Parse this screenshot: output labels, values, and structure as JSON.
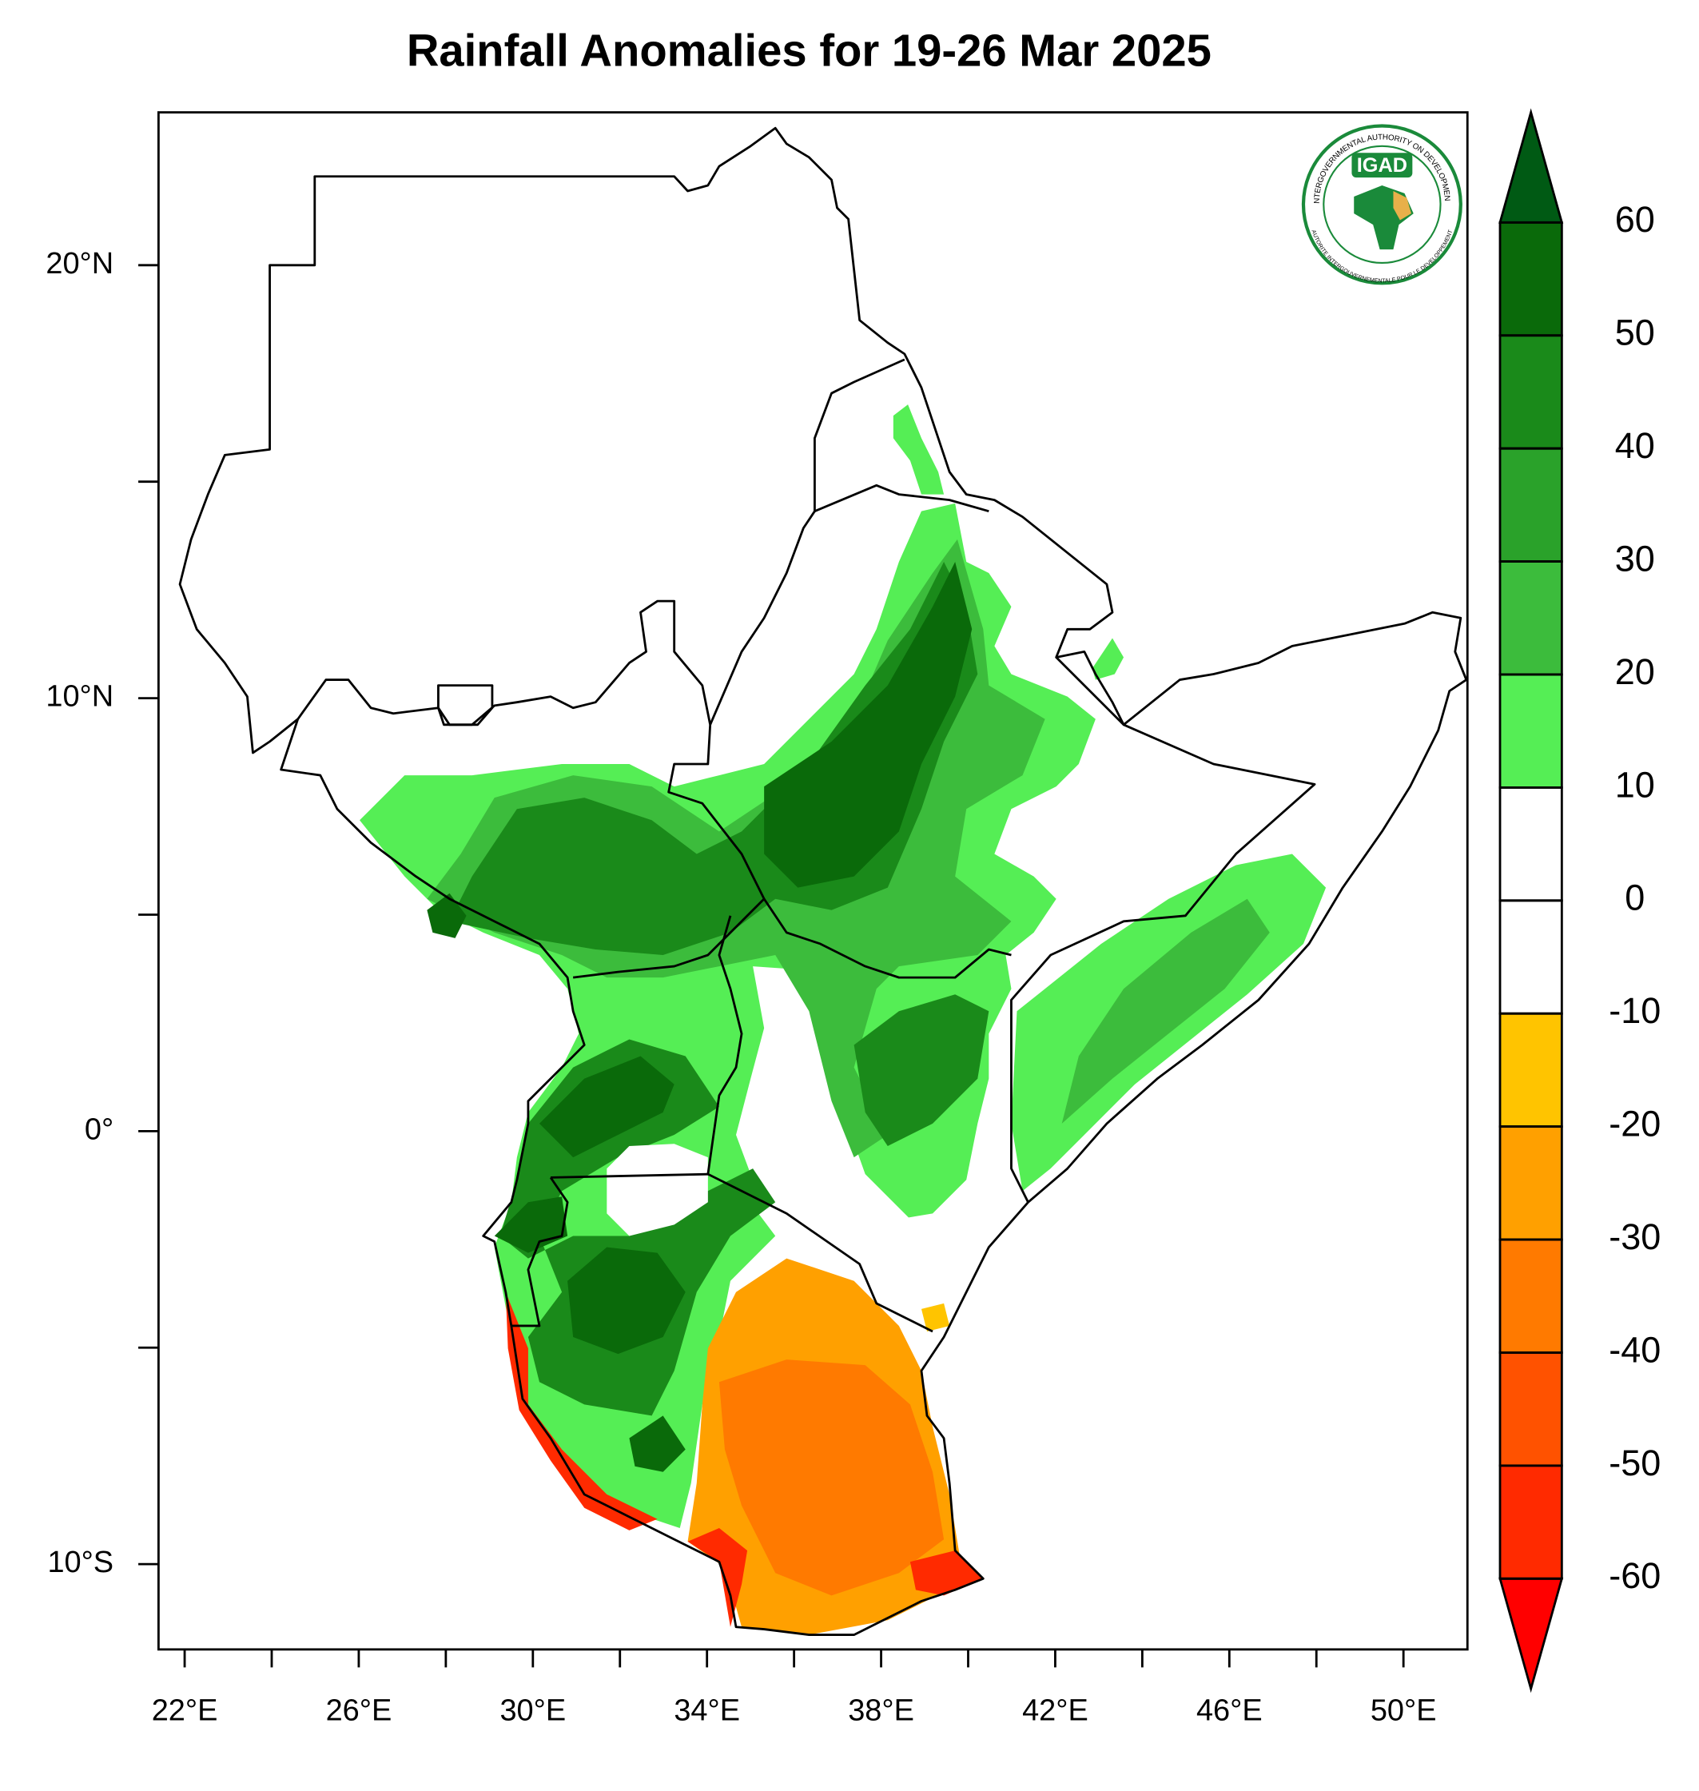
{
  "title": "Rainfall Anomalies for 19-26 Mar 2025",
  "logo": {
    "name": "IGAD",
    "ring_top": "INTERGOVERNMENTAL AUTHORITY ON DEVELOPMENT",
    "ring_bottom": "AUTORITE INTERGOUVERNEMENTALE POUR LE DEVELOPPEMENT"
  },
  "map": {
    "xlim": [
      21.4,
      51.47
    ],
    "ylim": [
      -11.97,
      23.53
    ],
    "xticks": [
      {
        "value": 22,
        "label": "22°E"
      },
      {
        "value": 26,
        "label": "26°E"
      },
      {
        "value": 30,
        "label": "30°E"
      },
      {
        "value": 34,
        "label": "34°E"
      },
      {
        "value": 38,
        "label": "38°E"
      },
      {
        "value": 42,
        "label": "42°E"
      },
      {
        "value": 46,
        "label": "46°E"
      },
      {
        "value": 50,
        "label": "50°E"
      }
    ],
    "yticks": [
      {
        "value": 20,
        "label": "20°N"
      },
      {
        "value": 10,
        "label": "10°N"
      },
      {
        "value": 0,
        "label": "0°"
      },
      {
        "value": -10,
        "label": "10°S"
      }
    ]
  },
  "colorbar": {
    "ticks": [
      60,
      50,
      40,
      30,
      20,
      10,
      0,
      -10,
      -20,
      -30,
      -40,
      -50,
      -60
    ],
    "colors": [
      "#005a14",
      "#0a6a0a",
      "#1a8a1a",
      "#2aa22a",
      "#3cbc3c",
      "#55ee55",
      "#ffffff",
      "#ffffff",
      "#ffc400",
      "#ffa000",
      "#ff7a00",
      "#ff5200",
      "#ff2a00",
      "#ff0000"
    ]
  }
}
